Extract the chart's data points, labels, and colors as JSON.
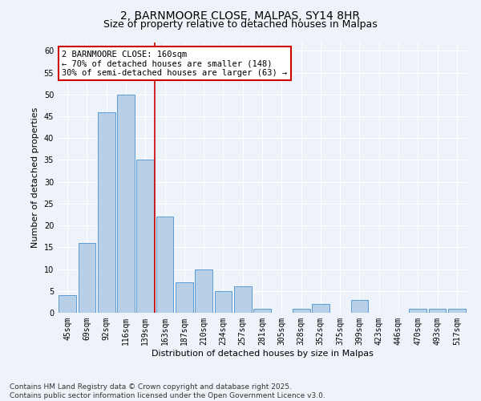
{
  "title_line1": "2, BARNMOORE CLOSE, MALPAS, SY14 8HR",
  "title_line2": "Size of property relative to detached houses in Malpas",
  "xlabel": "Distribution of detached houses by size in Malpas",
  "ylabel": "Number of detached properties",
  "bar_color": "#b8cfe8",
  "bar_edge_color": "#5b9bd5",
  "categories": [
    "45sqm",
    "69sqm",
    "92sqm",
    "116sqm",
    "139sqm",
    "163sqm",
    "187sqm",
    "210sqm",
    "234sqm",
    "257sqm",
    "281sqm",
    "305sqm",
    "328sqm",
    "352sqm",
    "375sqm",
    "399sqm",
    "423sqm",
    "446sqm",
    "470sqm",
    "493sqm",
    "517sqm"
  ],
  "values": [
    4,
    16,
    46,
    50,
    35,
    22,
    7,
    10,
    5,
    6,
    1,
    0,
    1,
    2,
    0,
    3,
    0,
    0,
    1,
    1,
    1
  ],
  "ylim": [
    0,
    62
  ],
  "yticks": [
    0,
    5,
    10,
    15,
    20,
    25,
    30,
    35,
    40,
    45,
    50,
    55,
    60
  ],
  "ref_line_index": 5,
  "annotation_text": "2 BARNMOORE CLOSE: 160sqm\n← 70% of detached houses are smaller (148)\n30% of semi-detached houses are larger (63) →",
  "annotation_box_color": "#ffffff",
  "annotation_box_edge": "#cc0000",
  "ref_line_color": "#cc0000",
  "background_color": "#eef2f9",
  "grid_color": "#ffffff",
  "footer_text": "Contains HM Land Registry data © Crown copyright and database right 2025.\nContains public sector information licensed under the Open Government Licence v3.0.",
  "title_fontsize": 10,
  "subtitle_fontsize": 9,
  "axis_label_fontsize": 8,
  "tick_fontsize": 7,
  "annotation_fontsize": 7.5,
  "footer_fontsize": 6.5
}
